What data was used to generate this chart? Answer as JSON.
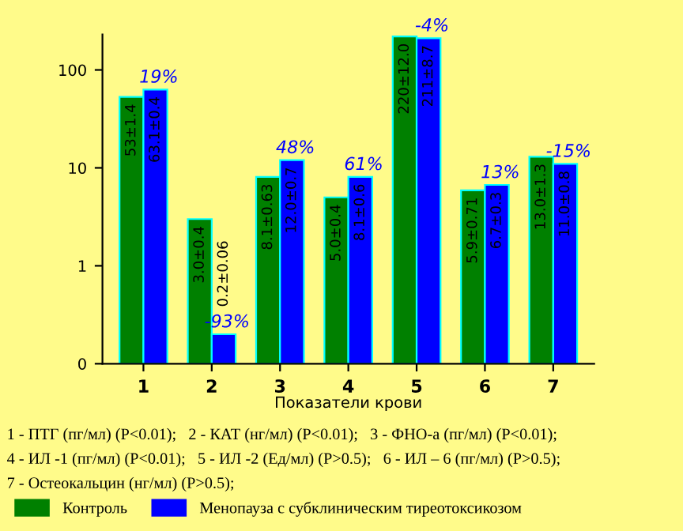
{
  "chart_data": {
    "type": "bar",
    "xlabel": "Показатели крови",
    "categories": [
      "1",
      "2",
      "3",
      "4",
      "5",
      "6",
      "7"
    ],
    "series": [
      {
        "name": "Контроль",
        "color": "#008000",
        "values": [
          53,
          3.0,
          8.1,
          5.0,
          220,
          5.9,
          13.0
        ],
        "value_labels": [
          "53±1.4",
          "3.0±0.4",
          "8.1±0.63",
          "5.0±0.4",
          "220±12.0",
          "5.9±0.71",
          "13.0±1.3"
        ]
      },
      {
        "name": "Менопауза с субклиническим тиреотоксикозом",
        "color": "#0000ff",
        "values": [
          63.1,
          0.2,
          12.0,
          8.1,
          211,
          6.7,
          11.0
        ],
        "value_labels": [
          "63.1±0.4",
          "0.2±0.06",
          "12.0±0.7",
          "8.1±0.6",
          "211±8.7",
          "6.7±0.3",
          "11.0±0.8"
        ]
      }
    ],
    "log": true,
    "ylim": [
      0.1,
      230
    ],
    "yticks": [
      {
        "value": 0.1,
        "label": "0"
      },
      1,
      10,
      100
    ],
    "grid": false,
    "legend": "bottom",
    "annotations": [
      {
        "text": "19%",
        "x": "1",
        "y": 63.1
      },
      {
        "text": "-93%",
        "x": "2",
        "y": 0.2
      },
      {
        "text": "48%",
        "x": "3",
        "y": 12.0
      },
      {
        "text": "61%",
        "x": "4",
        "y": 8.1
      },
      {
        "text": "-4%",
        "x": "5",
        "y": 211
      },
      {
        "text": "13%",
        "x": "6",
        "y": 6.7
      },
      {
        "text": "-15%",
        "x": "7",
        "y": 11.0
      },
      "1 - ПТГ (пг/мл) (P<0.01);   2 - КАТ (нг/мл) (P<0.01);   3 - ФНО-а (пг/мл) (P<0.01);",
      "4 - ИЛ -1 (пг/мл) (P<0.01);   5 - ИЛ -2 (Ед/мл) (P>0.5);   6 - ИЛ – 6 (пг/мл) (P>0.5);",
      "7 - Остеокальцин (нг/мл) (P>0.5);"
    ]
  }
}
